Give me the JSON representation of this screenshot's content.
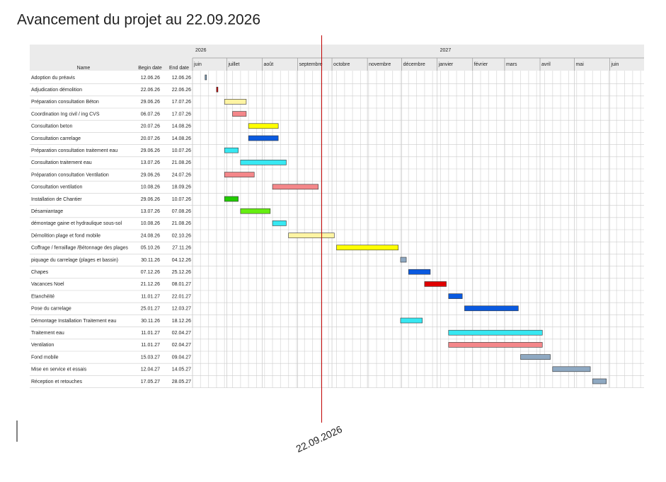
{
  "chart_data": {
    "type": "gantt",
    "title": "Avancement du projet au 22.09.2026",
    "columns": [
      "Name",
      "Begin date",
      "End date"
    ],
    "years": [
      "2026",
      "2027"
    ],
    "months": [
      "juin",
      "juillet",
      "août",
      "septembre",
      "octobre",
      "novembre",
      "décembre",
      "janvier",
      "février",
      "mars",
      "avril",
      "mai",
      "juin"
    ],
    "today": "22.09.2026",
    "tasks": [
      {
        "name": "Adoption du préavis",
        "begin": "12.06.26",
        "end": "12.06.26",
        "color": "#7a9ab5"
      },
      {
        "name": "Adjudication démolition",
        "begin": "22.06.26",
        "end": "22.06.26",
        "color": "#cc0000"
      },
      {
        "name": "Préparation consultation Béton",
        "begin": "29.06.26",
        "end": "17.07.26",
        "color": "#fff4a3"
      },
      {
        "name": "Coordination Ing civil / ing CVS",
        "begin": "06.07.26",
        "end": "17.07.26",
        "color": "#f4878a"
      },
      {
        "name": "Consultation beton",
        "begin": "20.07.26",
        "end": "14.08.26",
        "color": "#ffff00"
      },
      {
        "name": "Consultation carrelage",
        "begin": "20.07.26",
        "end": "14.08.26",
        "color": "#0a5ae0"
      },
      {
        "name": "Préparation consultation traitement eau",
        "begin": "29.06.26",
        "end": "10.07.26",
        "color": "#37e8f2"
      },
      {
        "name": "Consultation traitement eau",
        "begin": "13.07.26",
        "end": "21.08.26",
        "color": "#37e8f2"
      },
      {
        "name": "Préparation consultation Ventilation",
        "begin": "29.06.26",
        "end": "24.07.26",
        "color": "#f4878a"
      },
      {
        "name": "Consultation ventilation",
        "begin": "10.08.26",
        "end": "18.09.26",
        "color": "#f4878a"
      },
      {
        "name": "Installation de Chantier",
        "begin": "29.06.26",
        "end": "10.07.26",
        "color": "#22cc00"
      },
      {
        "name": "Désamiantage",
        "begin": "13.07.26",
        "end": "07.08.26",
        "color": "#66ee11"
      },
      {
        "name": "démontage gaine et hydraulique sous-sol",
        "begin": "10.08.26",
        "end": "21.08.26",
        "color": "#37e8f2"
      },
      {
        "name": "Démolition plage et fond mobile",
        "begin": "24.08.26",
        "end": "02.10.26",
        "color": "#fff4a3"
      },
      {
        "name": "Coffrage / ferraillage /Bétonnage des plages",
        "begin": "05.10.26",
        "end": "27.11.26",
        "color": "#ffff00"
      },
      {
        "name": "piquage du carrelage (plages et bassin)",
        "begin": "30.11.26",
        "end": "04.12.26",
        "color": "#8fa9c2"
      },
      {
        "name": "Chapes",
        "begin": "07.12.26",
        "end": "25.12.26",
        "color": "#0a5ae0"
      },
      {
        "name": "Vacances Noel",
        "begin": "21.12.26",
        "end": "08.01.27",
        "color": "#e00000"
      },
      {
        "name": "Etanchéité",
        "begin": "11.01.27",
        "end": "22.01.27",
        "color": "#0a5ae0"
      },
      {
        "name": "Pose du carrelage",
        "begin": "25.01.27",
        "end": "12.03.27",
        "color": "#0a5ae0"
      },
      {
        "name": "Démontage Installation Traitement eau",
        "begin": "30.11.26",
        "end": "18.12.26",
        "color": "#37e8f2"
      },
      {
        "name": "Traitement eau",
        "begin": "11.01.27",
        "end": "02.04.27",
        "color": "#37e8f2"
      },
      {
        "name": "Ventilation",
        "begin": "11.01.27",
        "end": "02.04.27",
        "color": "#f4878a"
      },
      {
        "name": "Fond mobile",
        "begin": "15.03.27",
        "end": "09.04.27",
        "color": "#8fa9c2"
      },
      {
        "name": "Mise en service et essais",
        "begin": "12.04.27",
        "end": "14.05.27",
        "color": "#8fa9c2"
      },
      {
        "name": "Réception et retouches",
        "begin": "17.05.27",
        "end": "28.05.27",
        "color": "#8fa9c2"
      }
    ]
  }
}
